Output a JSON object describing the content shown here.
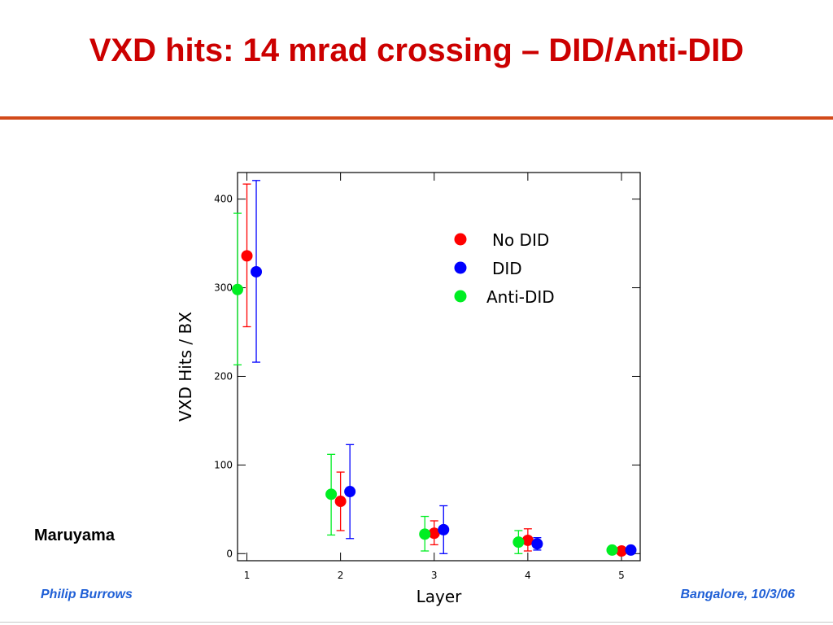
{
  "page": {
    "title": "VXD hits: 14 mrad crossing – DID/Anti-DID",
    "author_note": "Maruyama",
    "footer_left": "Philip Burrows",
    "footer_right": "Bangalore, 10/3/06"
  },
  "colors": {
    "title": "#cc0000",
    "rule": "#d24a1a",
    "footer": "#1f5fd6"
  },
  "chart_data": {
    "type": "scatter",
    "title": "",
    "xlabel": "Layer",
    "ylabel": "VXD Hits / BX",
    "xlim": [
      0.9,
      5.2
    ],
    "ylim": [
      -8,
      430
    ],
    "xticks": [
      1,
      2,
      3,
      4,
      5
    ],
    "yticks": [
      0,
      100,
      200,
      300,
      400
    ],
    "legend_position": "top-right",
    "grid": false,
    "series": [
      {
        "name": "No DID",
        "color": "#ff0000",
        "points": [
          {
            "x": 1,
            "y": 336,
            "lo": 256,
            "hi": 417
          },
          {
            "x": 2,
            "y": 59,
            "lo": 26,
            "hi": 92
          },
          {
            "x": 3,
            "y": 23,
            "lo": 10,
            "hi": 37
          },
          {
            "x": 4,
            "y": 15,
            "lo": 3,
            "hi": 28
          },
          {
            "x": 5,
            "y": 3,
            "lo": 3,
            "hi": 3
          }
        ]
      },
      {
        "name": "DID",
        "color": "#0000ff",
        "points": [
          {
            "x": 1.1,
            "y": 318,
            "lo": 216,
            "hi": 421
          },
          {
            "x": 2.1,
            "y": 70,
            "lo": 17,
            "hi": 123
          },
          {
            "x": 3.1,
            "y": 27,
            "lo": 0,
            "hi": 54
          },
          {
            "x": 4.1,
            "y": 11,
            "lo": 4,
            "hi": 18
          },
          {
            "x": 5.1,
            "y": 4,
            "lo": 4,
            "hi": 4
          }
        ]
      },
      {
        "name": "Anti-DID",
        "color": "#00ee22",
        "points": [
          {
            "x": 0.9,
            "y": 298,
            "lo": 213,
            "hi": 384
          },
          {
            "x": 1.9,
            "y": 67,
            "lo": 21,
            "hi": 112
          },
          {
            "x": 2.9,
            "y": 22,
            "lo": 3,
            "hi": 42
          },
          {
            "x": 3.9,
            "y": 13,
            "lo": 0,
            "hi": 26
          },
          {
            "x": 4.9,
            "y": 4,
            "lo": 4,
            "hi": 4
          }
        ]
      }
    ]
  }
}
